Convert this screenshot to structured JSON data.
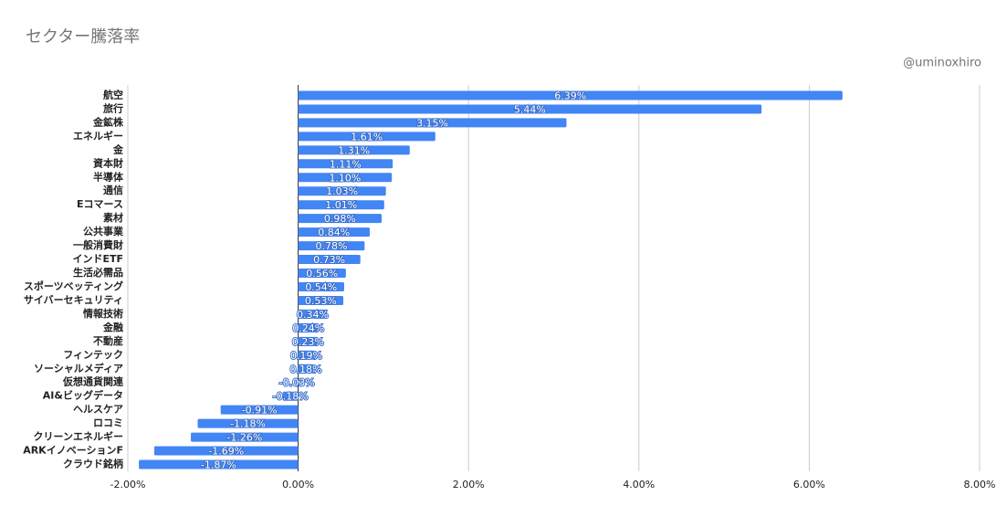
{
  "chart_data": {
    "type": "bar",
    "orientation": "horizontal",
    "title": "セクター騰落率",
    "annotation": "@uminoxhiro",
    "categories": [
      "航空",
      "旅行",
      "金鉱株",
      "エネルギー",
      "金",
      "資本財",
      "半導体",
      "通信",
      "Eコマース",
      "素材",
      "公共事業",
      "一般消費財",
      "インドETF",
      "生活必需品",
      "スポーツベッティング",
      "サイバーセキュリティ",
      "情報技術",
      "金融",
      "不動産",
      "フィンテック",
      "ソーシャルメディア",
      "仮想通貨関連",
      "AI&ビッグデータ",
      "ヘルスケア",
      "ロコミ",
      "クリーンエネルギー",
      "ARKイノベーションF",
      "クラウド銘柄"
    ],
    "values": [
      6.39,
      5.44,
      3.15,
      1.61,
      1.31,
      1.11,
      1.1,
      1.03,
      1.01,
      0.98,
      0.84,
      0.78,
      0.73,
      0.56,
      0.54,
      0.53,
      0.34,
      0.24,
      0.23,
      0.19,
      0.18,
      -0.03,
      -0.18,
      -0.91,
      -1.18,
      -1.26,
      -1.69,
      -1.87
    ],
    "value_labels": [
      "6.39%",
      "5.44%",
      "3.15%",
      "1.61%",
      "1.31%",
      "1.11%",
      "1.10%",
      "1.03%",
      "1.01%",
      "0.98%",
      "0.84%",
      "0.78%",
      "0.73%",
      "0.56%",
      "0.54%",
      "0.53%",
      "0.34%",
      "0.24%",
      "0.23%",
      "0.19%",
      "0.18%",
      "-0.03%",
      "-0.18%",
      "-0.91%",
      "-1.18%",
      "-1.26%",
      "-1.69%",
      "-1.87%"
    ],
    "color": "#4285f4",
    "xlim": [
      -2,
      8
    ],
    "xticks": [
      {
        "value": -2,
        "label": "-2.00%"
      },
      {
        "value": 0,
        "label": "0.00%"
      },
      {
        "value": 2,
        "label": "2.00%"
      },
      {
        "value": 4,
        "label": "4.00%"
      },
      {
        "value": 6,
        "label": "6.00%"
      },
      {
        "value": 8,
        "label": "8.00%"
      }
    ],
    "grid": true
  }
}
